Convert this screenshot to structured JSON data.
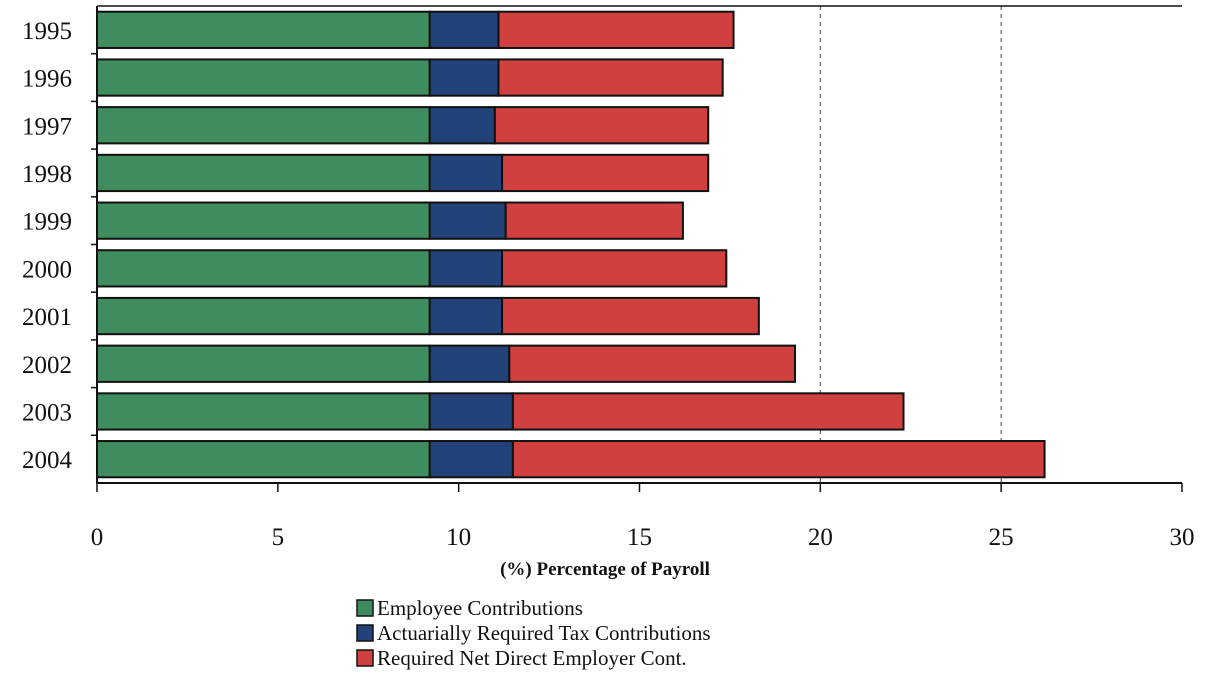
{
  "chart_data": {
    "type": "bar",
    "orientation": "horizontal",
    "stacked": true,
    "title": "",
    "xlabel": "(%) Percentage of Payroll",
    "ylabel": "",
    "xlim": [
      0,
      30
    ],
    "x_ticks": [
      0,
      5,
      10,
      15,
      20,
      25,
      30
    ],
    "gridlines_at": [
      20,
      25
    ],
    "legend_position": "bottom",
    "categories": [
      "1995",
      "1996",
      "1997",
      "1998",
      "1999",
      "2000",
      "2001",
      "2002",
      "2003",
      "2004"
    ],
    "series": [
      {
        "name": "Employee Contributions",
        "color": "#3f8c5f",
        "values": [
          9.2,
          9.2,
          9.2,
          9.2,
          9.2,
          9.2,
          9.2,
          9.2,
          9.2,
          9.2
        ]
      },
      {
        "name": "Actuarially Required Tax Contributions",
        "color": "#23427a",
        "values": [
          1.9,
          1.9,
          1.8,
          2.0,
          2.1,
          2.0,
          2.0,
          2.2,
          2.3,
          2.3
        ]
      },
      {
        "name": "Required Net Direct Employer Cont.",
        "color": "#d0403f",
        "values": [
          6.5,
          6.2,
          5.9,
          5.7,
          4.9,
          6.2,
          7.1,
          7.9,
          10.8,
          14.7
        ]
      }
    ]
  }
}
